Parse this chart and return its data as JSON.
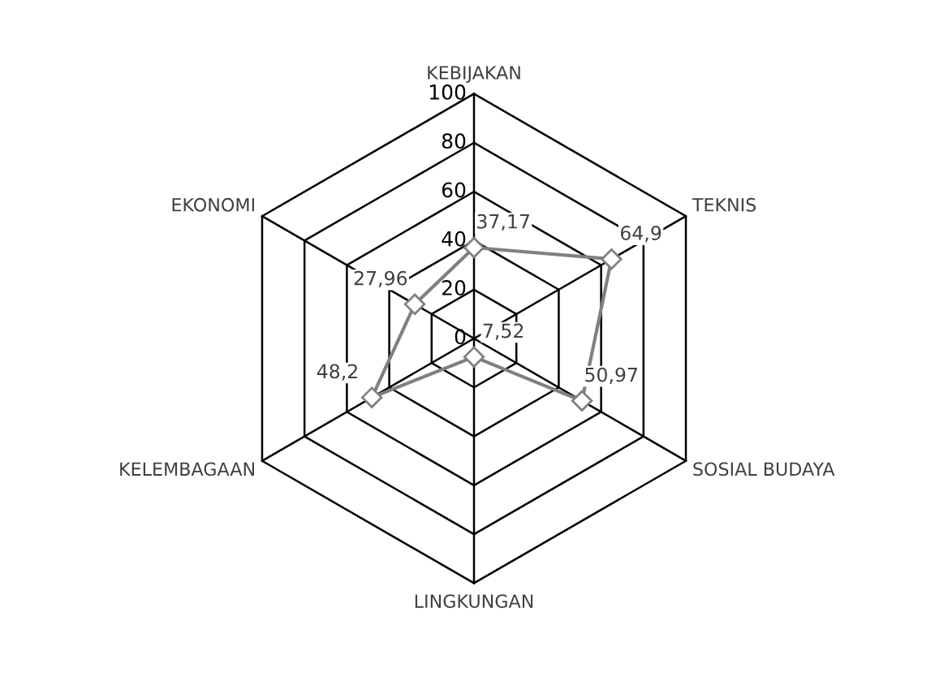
{
  "chart_data": {
    "type": "radar",
    "categories": [
      "KEBIJAKAN",
      "TEKNIS",
      "SOSIAL BUDAYA",
      "LINGKUNGAN",
      "KELEMBAGAAN",
      "EKONOMI"
    ],
    "series": [
      {
        "color": "#808080",
        "values": [
          37.17,
          64.9,
          50.97,
          7.52,
          48.2,
          27.96
        ],
        "value_labels": [
          "37,17",
          "64,9",
          "50,97",
          "7,52",
          "48,2",
          "27,96"
        ]
      }
    ],
    "ylim": [
      0,
      100
    ],
    "yticks": [
      0,
      20,
      40,
      60,
      80,
      100
    ],
    "marker": "diamond",
    "grid": true,
    "legend": false
  }
}
